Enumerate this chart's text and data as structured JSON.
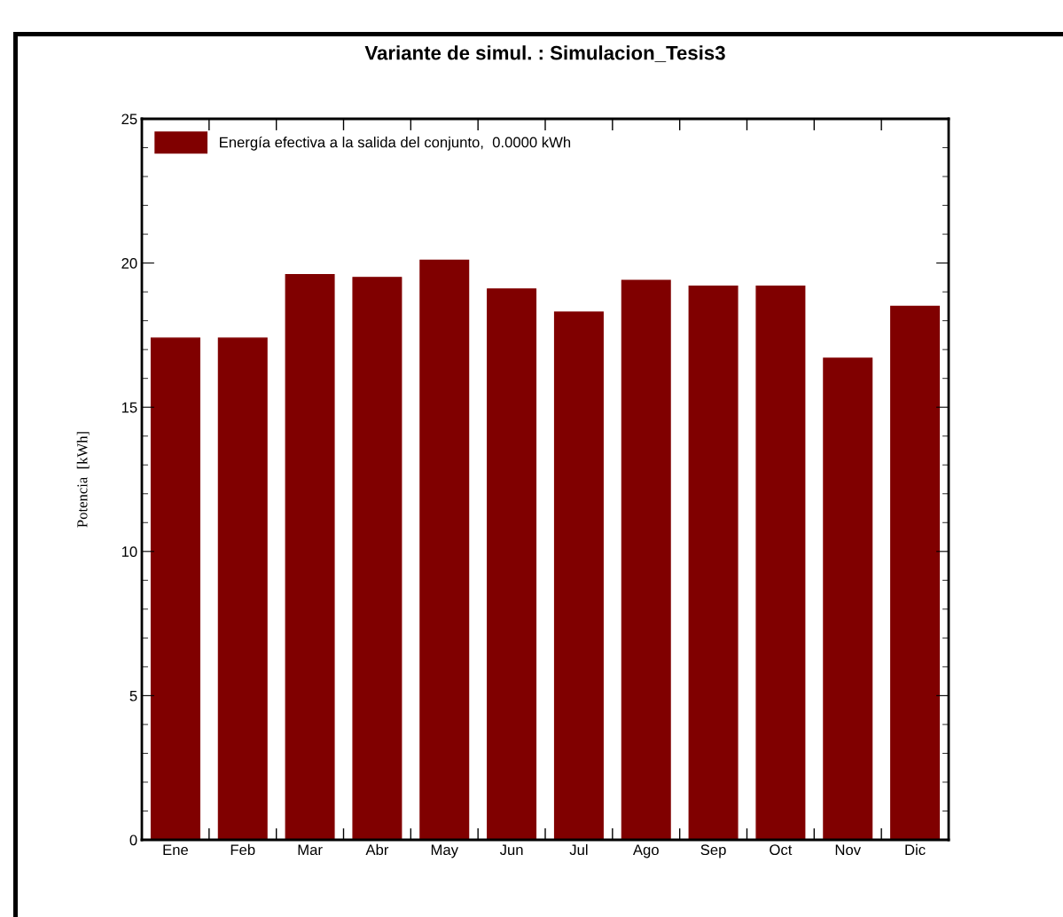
{
  "chart_data": {
    "type": "bar",
    "title": "Variante de simul. : Simulacion_Tesis3",
    "ylabel": "Potencia  [kWh]",
    "categories": [
      "Ene",
      "Feb",
      "Mar",
      "Abr",
      "May",
      "Jun",
      "Jul",
      "Ago",
      "Sep",
      "Oct",
      "Nov",
      "Dic"
    ],
    "series": [
      {
        "name": "Energía efectiva a la salida del conjunto,  0.0000 kWh",
        "color": "#800000",
        "values": [
          17.4,
          17.4,
          19.6,
          19.5,
          20.1,
          19.1,
          18.3,
          19.4,
          19.2,
          19.2,
          16.7,
          18.5
        ]
      }
    ],
    "ylim": [
      0,
      25
    ],
    "yticks": [
      0,
      5,
      10,
      15,
      20,
      25
    ],
    "grid": false,
    "legend": "top left"
  }
}
